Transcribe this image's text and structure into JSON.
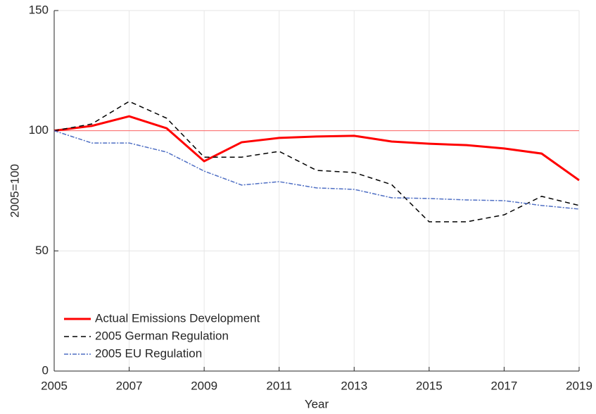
{
  "chart_data": {
    "type": "line",
    "x": [
      2005,
      2006,
      2007,
      2008,
      2009,
      2010,
      2011,
      2012,
      2013,
      2014,
      2015,
      2016,
      2017,
      2018,
      2019
    ],
    "series": [
      {
        "name": "Actual Emissions Development",
        "color": "#ff0000",
        "style": "solid",
        "width": 3,
        "values": [
          100,
          102,
          106,
          101,
          87.3,
          95.2,
          97,
          97.6,
          97.9,
          95.5,
          94.6,
          94,
          92.6,
          90.5,
          79.4
        ]
      },
      {
        "name": "2005 German Regulation",
        "color": "#000000",
        "style": "dashed",
        "width": 1.5,
        "values": [
          100,
          102.8,
          112.2,
          105.2,
          89,
          89,
          91.4,
          83.5,
          82.6,
          77.6,
          62.1,
          62.1,
          65,
          72.7,
          68.9
        ]
      },
      {
        "name": "2005 EU Regulation",
        "color": "#4f6fc4",
        "style": "dashdot",
        "width": 1.5,
        "values": [
          100,
          94.9,
          94.9,
          91.1,
          83.2,
          77.4,
          78.8,
          76.2,
          75.6,
          72.1,
          71.8,
          71.2,
          70.9,
          68.9,
          67.4
        ]
      }
    ],
    "reference_line": {
      "value": 100,
      "color": "#ff6666"
    },
    "xlabel": "Year",
    "ylabel": "2005=100",
    "xlim": [
      2005,
      2019
    ],
    "xticks": [
      2005,
      2007,
      2009,
      2011,
      2013,
      2015,
      2017,
      2019
    ],
    "ylim": [
      0,
      150
    ],
    "yticks": [
      0,
      50,
      100,
      150
    ],
    "grid": true,
    "legend": "lower-left"
  }
}
